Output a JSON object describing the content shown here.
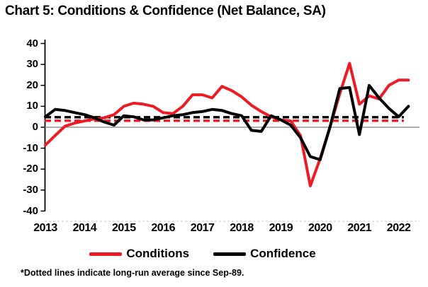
{
  "title": "Chart 5: Conditions & Confidence (Net Balance, SA)",
  "footnote": "*Dotted lines indicate long-run average since Sep-89.",
  "legend": [
    {
      "label": "Conditions",
      "color": "#ed1c24"
    },
    {
      "label": "Confidence",
      "color": "#000000"
    }
  ],
  "chart_data": {
    "type": "line",
    "frequency": "quarterly",
    "x_range": [
      "2013Q1",
      "2022Q2"
    ],
    "x_tick_labels": [
      "2013",
      "2014",
      "2015",
      "2016",
      "2017",
      "2018",
      "2019",
      "2020",
      "2021",
      "2022"
    ],
    "y_ticks": [
      40,
      30,
      20,
      10,
      0,
      -10,
      -20,
      -30,
      -40
    ],
    "ylim": [
      -40,
      40
    ],
    "baseline": 0,
    "grid": "off",
    "legend_position": "bottom",
    "series": [
      {
        "name": "Conditions",
        "color": "#ed1c24",
        "long_run_average": 3.1,
        "values": [
          -8.5,
          -4,
          0.5,
          2,
          3,
          4,
          4.5,
          6,
          10,
          11.5,
          11,
          10,
          7,
          6.5,
          10,
          15.5,
          15.5,
          14,
          19.5,
          17.5,
          14.5,
          10.5,
          7.5,
          5,
          3.5,
          3,
          -4,
          -28,
          -15,
          0,
          16,
          30.5,
          11,
          15,
          13.5,
          20,
          22.5,
          22.5
        ]
      },
      {
        "name": "Confidence",
        "color": "#000000",
        "long_run_average": 4.8,
        "values": [
          5,
          8.5,
          8,
          7,
          6,
          4.5,
          2.5,
          1,
          5.5,
          5,
          3.5,
          3.5,
          4.5,
          5.5,
          6,
          7,
          7.5,
          8.5,
          8,
          6.5,
          5.5,
          -1.5,
          -2,
          5.5,
          3.5,
          1,
          -5,
          -14,
          -15.5,
          0,
          18.5,
          19,
          -3.5,
          20,
          14,
          9,
          5,
          10
        ]
      }
    ]
  }
}
